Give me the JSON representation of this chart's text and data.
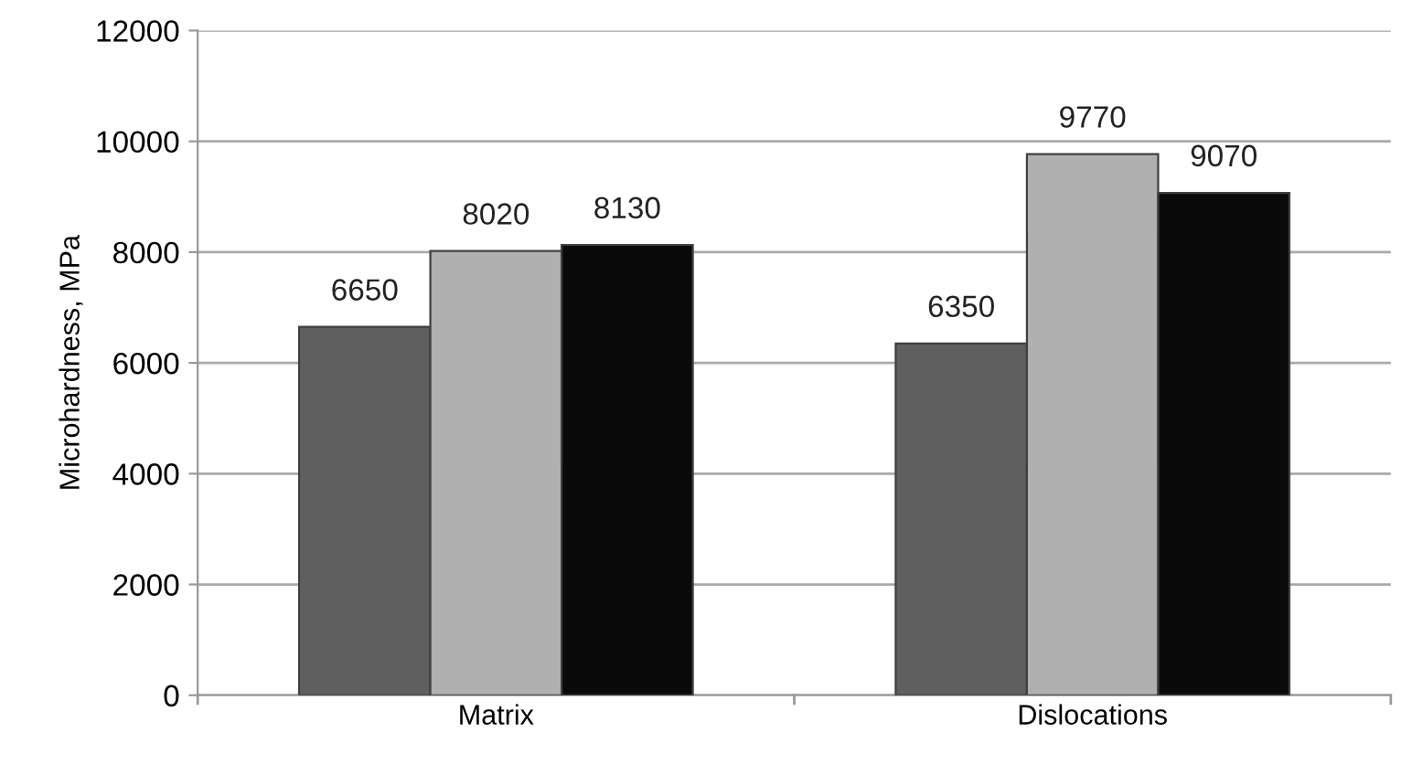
{
  "chart_data": {
    "type": "bar",
    "ylabel": "Microhardness, MPa",
    "categories": [
      "Matrix",
      "Dislocations"
    ],
    "series": [
      {
        "color": "#5f5f5f",
        "values": [
          6650,
          6350
        ]
      },
      {
        "color": "#b0b0b0",
        "values": [
          8020,
          9770
        ]
      },
      {
        "color": "#0a0a0a",
        "values": [
          8130,
          9070
        ]
      }
    ],
    "ylim": [
      0,
      12000
    ],
    "yticks": [
      0,
      2000,
      4000,
      6000,
      8000,
      10000,
      12000
    ],
    "grid": "y",
    "data_labels": true
  }
}
